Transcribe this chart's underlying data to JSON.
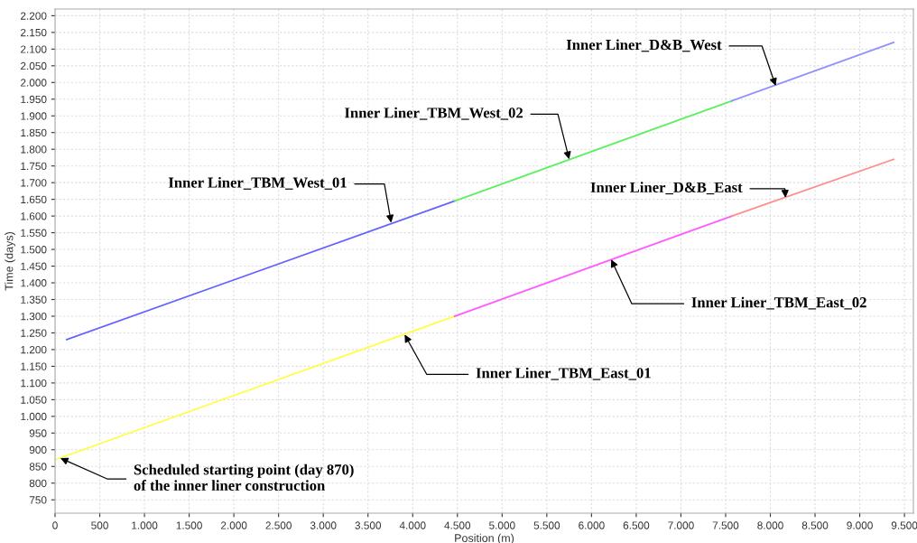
{
  "chart_data": {
    "type": "line",
    "xlabel": "Position (m)",
    "ylabel": "Time (days)",
    "xlim": [
      0,
      9600
    ],
    "ylim": [
      710,
      2220
    ],
    "xticks": [
      0,
      500,
      {
        "value": 1000,
        "label": "1.000"
      },
      {
        "value": 1500,
        "label": "1.500"
      },
      {
        "value": 2000,
        "label": "2.000"
      },
      {
        "value": 2500,
        "label": "2.500"
      },
      {
        "value": 3000,
        "label": "3.000"
      },
      {
        "value": 3500,
        "label": "3.500"
      },
      {
        "value": 4000,
        "label": "4.000"
      },
      {
        "value": 4500,
        "label": "4.500"
      },
      {
        "value": 5000,
        "label": "5.000"
      },
      {
        "value": 5500,
        "label": "5.500"
      },
      {
        "value": 6000,
        "label": "6.000"
      },
      {
        "value": 6500,
        "label": "6.500"
      },
      {
        "value": 7000,
        "label": "7.000"
      },
      {
        "value": 7500,
        "label": "7.500"
      },
      {
        "value": 8000,
        "label": "8.000"
      },
      {
        "value": 8500,
        "label": "8.500"
      },
      {
        "value": 9000,
        "label": "9.000"
      },
      {
        "value": 9500,
        "label": "9.500"
      }
    ],
    "yticks": [
      750,
      800,
      850,
      900,
      950,
      {
        "value": 1000,
        "label": "1.000"
      },
      {
        "value": 1050,
        "label": "1.050"
      },
      {
        "value": 1100,
        "label": "1.100"
      },
      {
        "value": 1150,
        "label": "1.150"
      },
      {
        "value": 1200,
        "label": "1.200"
      },
      {
        "value": 1250,
        "label": "1.250"
      },
      {
        "value": 1300,
        "label": "1.300"
      },
      {
        "value": 1350,
        "label": "1.350"
      },
      {
        "value": 1400,
        "label": "1.400"
      },
      {
        "value": 1450,
        "label": "1.450"
      },
      {
        "value": 1500,
        "label": "1.500"
      },
      {
        "value": 1550,
        "label": "1.550"
      },
      {
        "value": 1600,
        "label": "1.600"
      },
      {
        "value": 1650,
        "label": "1.650"
      },
      {
        "value": 1700,
        "label": "1.700"
      },
      {
        "value": 1750,
        "label": "1.750"
      },
      {
        "value": 1800,
        "label": "1.800"
      },
      {
        "value": 1850,
        "label": "1.850"
      },
      {
        "value": 1900,
        "label": "1.900"
      },
      {
        "value": 1950,
        "label": "1.950"
      },
      {
        "value": 2000,
        "label": "2.000"
      },
      {
        "value": 2050,
        "label": "2.050"
      },
      {
        "value": 2100,
        "label": "2.100"
      },
      {
        "value": 2150,
        "label": "2.150"
      },
      {
        "value": 2200,
        "label": "2.200"
      }
    ],
    "grid": true,
    "legend": false,
    "marker": "none",
    "line_style": "solid",
    "series": [
      {
        "color": "#6464ff",
        "x": [
          130,
          4470
        ],
        "values": [
          1230,
          1645
        ]
      },
      {
        "color": "#5ef05e",
        "x": [
          4470,
          7570
        ],
        "values": [
          1645,
          1945
        ]
      },
      {
        "color": "#9090ff",
        "x": [
          7570,
          9380
        ],
        "values": [
          1945,
          2120
        ]
      },
      {
        "color": "#ffff40",
        "x": [
          0,
          4470
        ],
        "values": [
          870,
          1300
        ]
      },
      {
        "color": "#ff5cff",
        "x": [
          4470,
          7570
        ],
        "values": [
          1300,
          1600
        ]
      },
      {
        "color": "#ff8c8c",
        "x": [
          7570,
          9380
        ],
        "values": [
          1600,
          1770
        ]
      }
    ],
    "annotations": [
      {
        "text": "Inner Liner_TBM_West_01",
        "x": 3760,
        "y": 1580
      },
      {
        "text": "Inner Liner_TBM_West_02",
        "x": 5750,
        "y": 1770
      },
      {
        "text": "Inner Liner_D&B_West",
        "x": 8060,
        "y": 1990
      },
      {
        "text": "Inner Liner_D&B_East",
        "x": 8170,
        "y": 1655
      },
      {
        "text": "Inner Liner_TBM_East_02",
        "x": 6220,
        "y": 1470
      },
      {
        "text": "Inner Liner_TBM_East_01",
        "x": 3910,
        "y": 1245
      },
      {
        "text": "Scheduled starting point (day 870)\nof the inner liner construction",
        "x": 60,
        "y": 875
      }
    ]
  }
}
